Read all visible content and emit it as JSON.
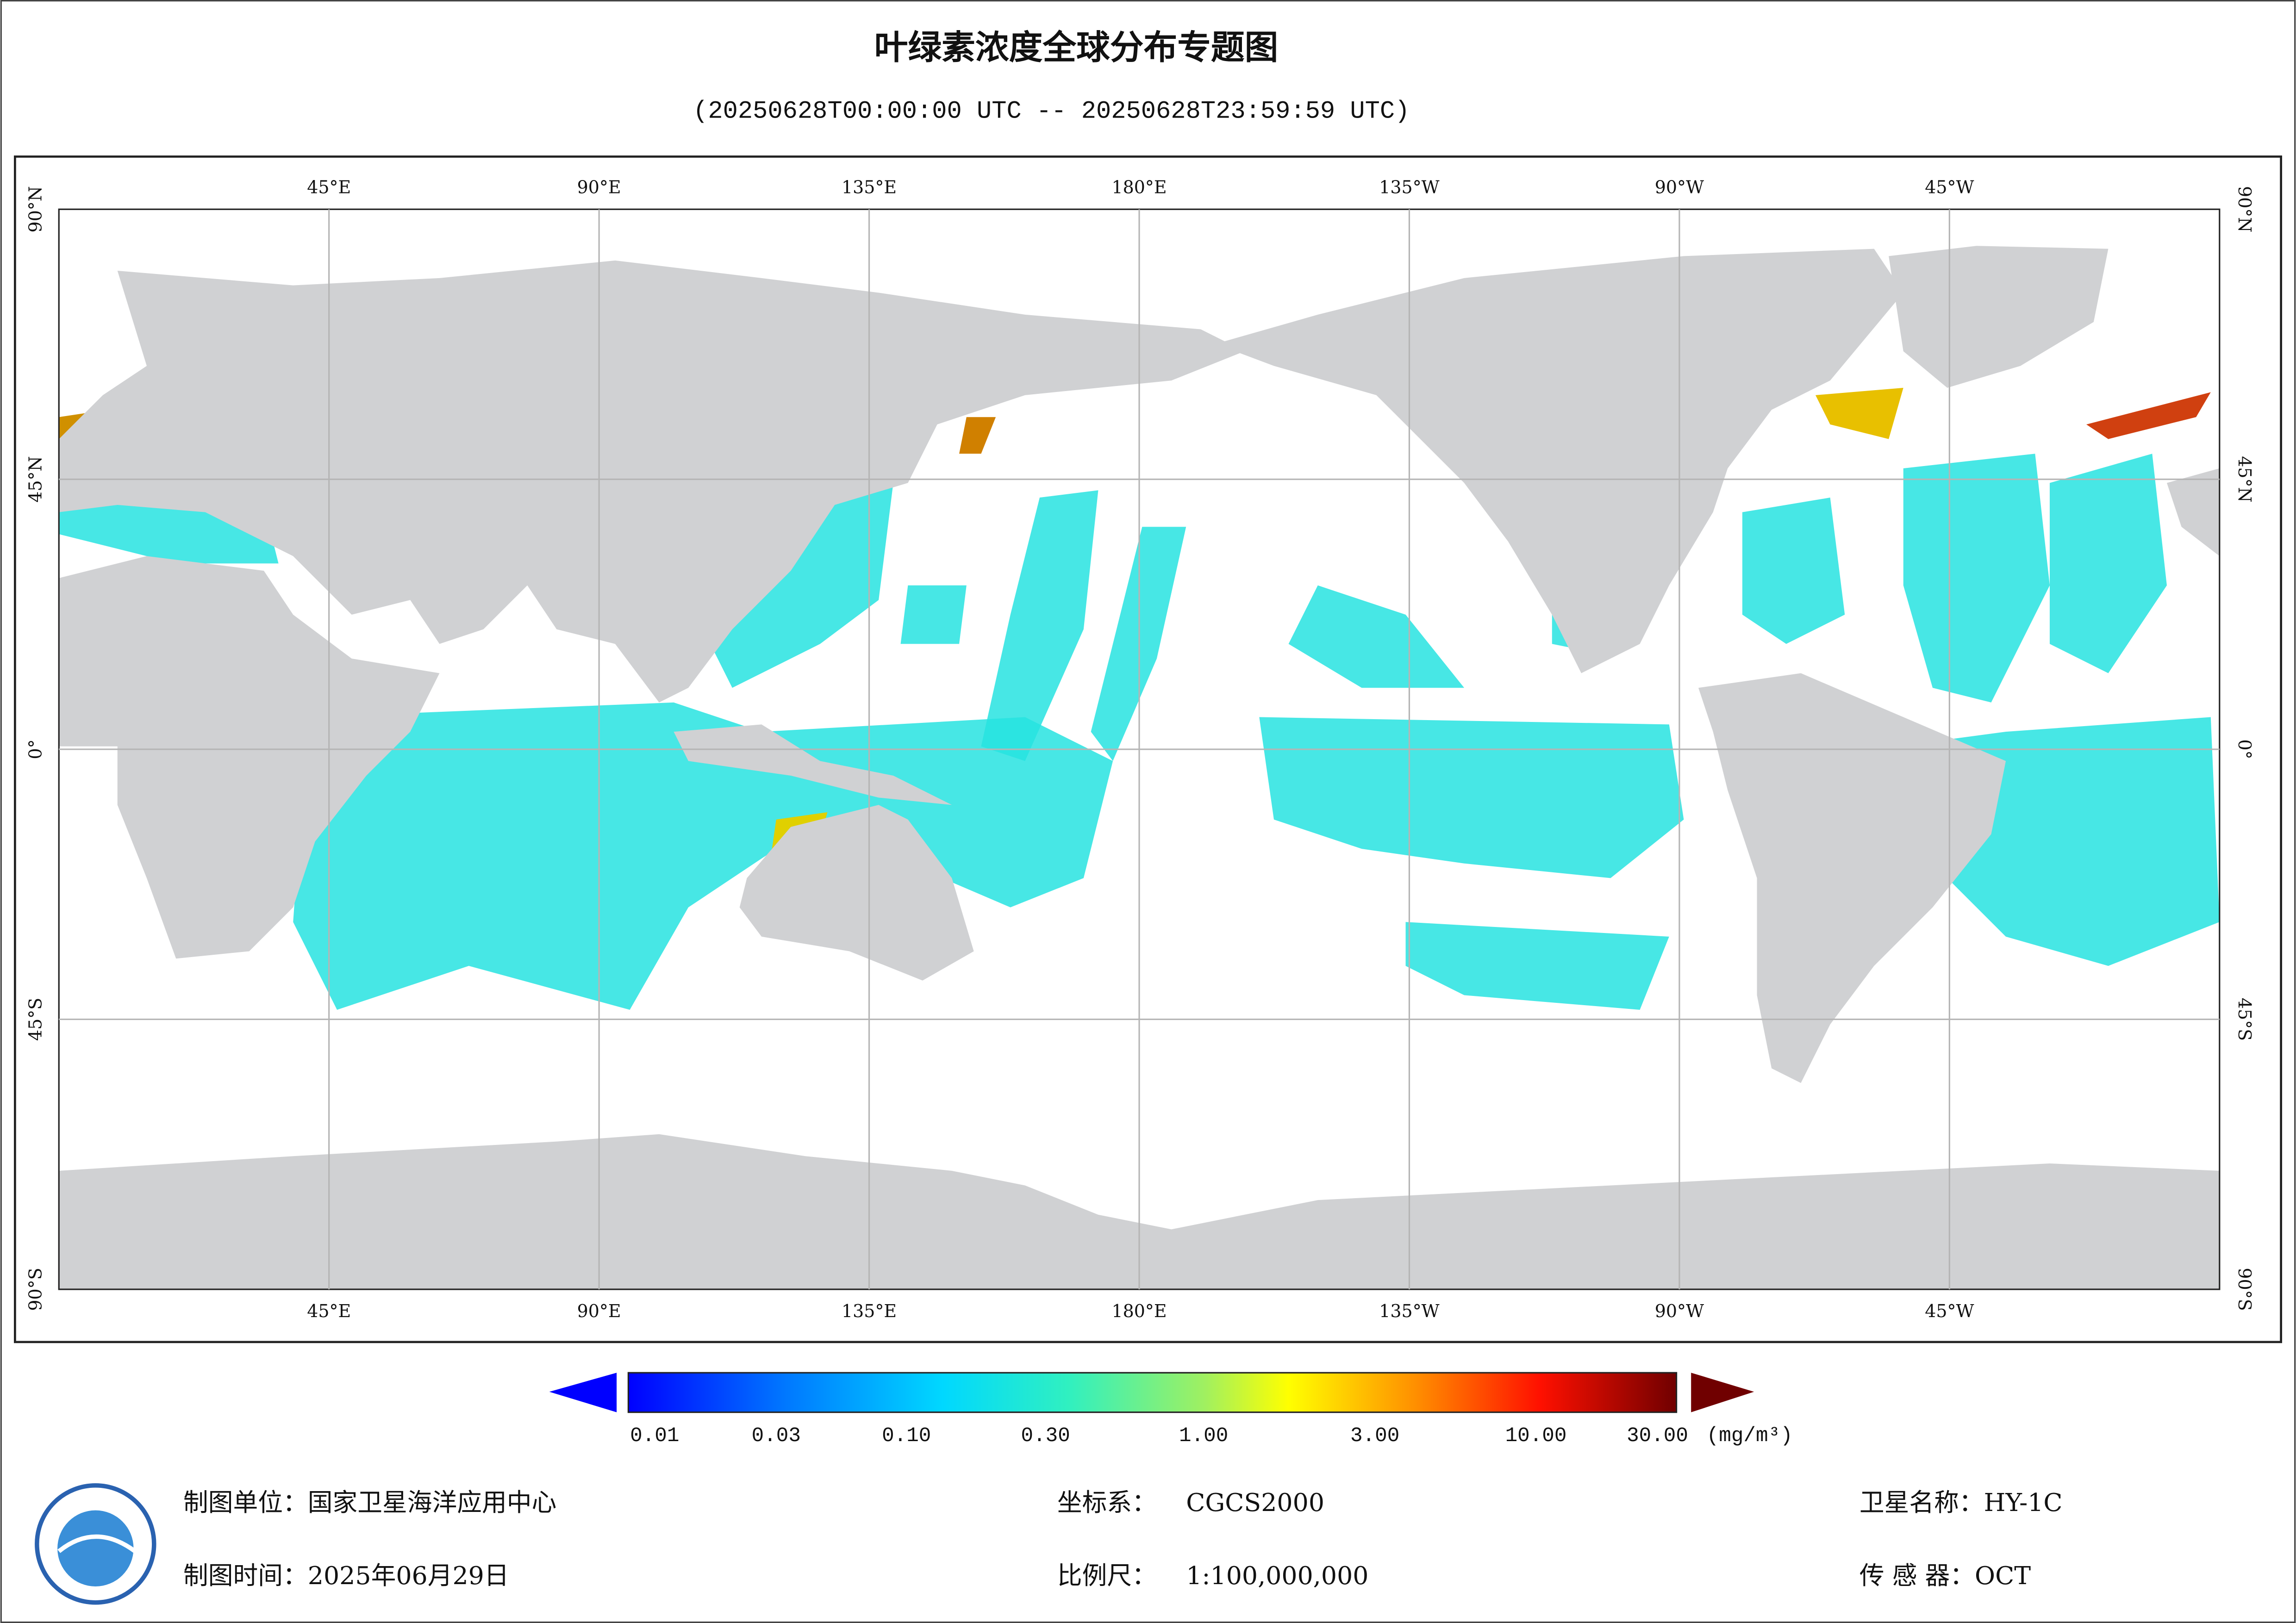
{
  "header": {
    "title": "叶绿素浓度全球分布专题图",
    "subtitle": "(20250628T00:00:00 UTC -- 20250628T23:59:59 UTC)"
  },
  "map": {
    "lon_labels": [
      "45°E",
      "90°E",
      "135°E",
      "180°E",
      "135°W",
      "90°W",
      "45°W"
    ],
    "lat_labels": [
      "90°N",
      "45°N",
      "0°",
      "45°S",
      "90°S"
    ]
  },
  "colorbar": {
    "labels": [
      "0.01",
      "0.03",
      "0.10",
      "0.30",
      "1.00",
      "3.00",
      "10.00",
      "30.00"
    ],
    "unit": "(mg/m³)"
  },
  "footer": {
    "producer": "制图单位：国家卫星海洋应用中心",
    "date": "制图时间：2025年06月29日",
    "crs_label": "坐标系：",
    "crs": "CGCS2000",
    "scale_label": "比例尺：",
    "scale": "1:100,000,000",
    "satellite": "卫星名称：HY-1C",
    "sensor": "传 感 器：OCT"
  }
}
